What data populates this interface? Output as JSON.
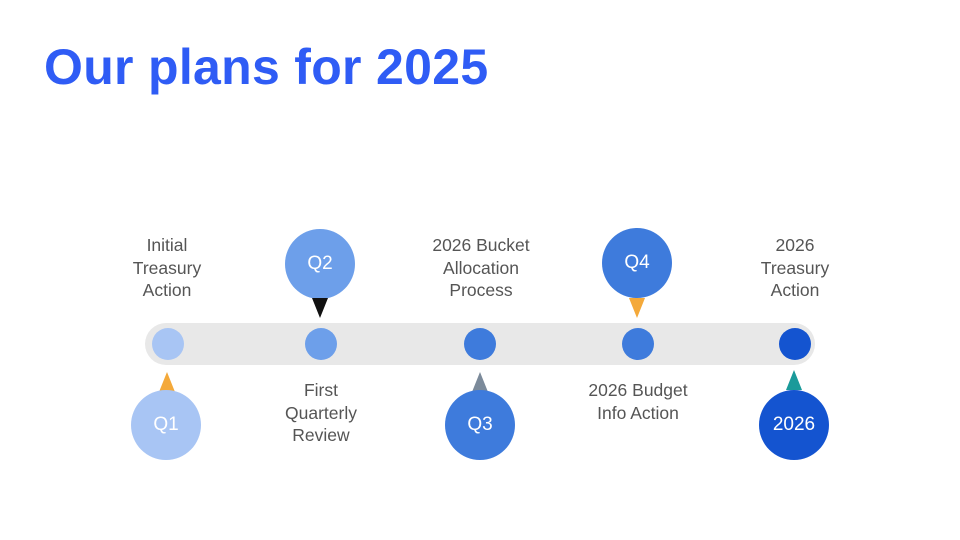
{
  "title": "Our plans for 2025",
  "milestones": [
    {
      "marker": "Q1",
      "label": "Initial\nTreasury\nAction",
      "color": "#a8c5f4",
      "pointer_color": "#f4a93a"
    },
    {
      "marker": "Q2",
      "label": "First\nQuarterly\nReview",
      "color": "#6d9fea",
      "pointer_color": "#111111"
    },
    {
      "marker": "Q3",
      "label": "2026 Bucket\nAllocation\nProcess",
      "color": "#3e7bdc",
      "pointer_color": "#7b8a9a"
    },
    {
      "marker": "Q4",
      "label": "2026 Budget\nInfo Action",
      "color": "#3e7bdc",
      "pointer_color": "#f4a93a"
    },
    {
      "marker": "2026",
      "label": "2026\nTreasury\nAction",
      "color": "#1454d0",
      "pointer_color": "#1a9a9a"
    }
  ]
}
